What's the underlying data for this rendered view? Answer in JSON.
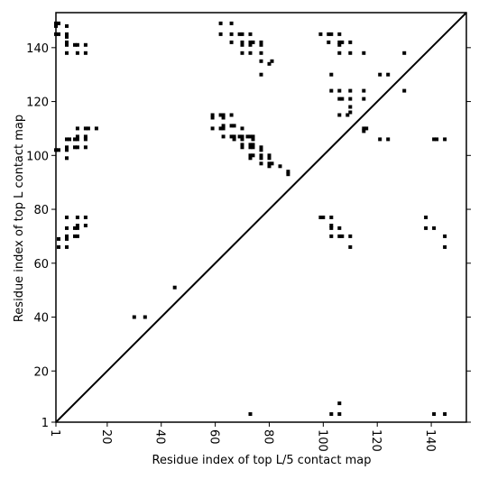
{
  "chart_data": {
    "type": "scatter",
    "title": "",
    "xlabel": "Residue index of top L/5 contact map",
    "ylabel": "Residue index of top L contact map",
    "xlim": [
      1,
      153
    ],
    "ylim": [
      1,
      153
    ],
    "xticks": [
      1,
      20,
      40,
      60,
      80,
      100,
      120,
      140
    ],
    "yticks": [
      1,
      20,
      40,
      60,
      80,
      100,
      120,
      140
    ],
    "grid": false,
    "diagonal_line": true,
    "marker": "small black squares",
    "series": [
      {
        "points": [
          [
            1,
            149
          ],
          [
            1,
            148
          ],
          [
            1,
            145
          ],
          [
            2,
            149
          ],
          [
            2,
            145
          ],
          [
            5,
            148
          ],
          [
            5,
            145
          ],
          [
            5,
            144
          ],
          [
            5,
            142
          ],
          [
            5,
            141
          ],
          [
            5,
            138
          ],
          [
            8,
            141
          ],
          [
            9,
            141
          ],
          [
            9,
            138
          ],
          [
            12,
            141
          ],
          [
            12,
            138
          ],
          [
            1,
            102
          ],
          [
            2,
            102
          ],
          [
            5,
            106
          ],
          [
            5,
            103
          ],
          [
            5,
            102
          ],
          [
            5,
            99
          ],
          [
            6,
            106
          ],
          [
            8,
            106
          ],
          [
            9,
            110
          ],
          [
            9,
            107
          ],
          [
            9,
            106
          ],
          [
            9,
            103
          ],
          [
            8,
            103
          ],
          [
            12,
            110
          ],
          [
            12,
            107
          ],
          [
            12,
            106
          ],
          [
            12,
            103
          ],
          [
            13,
            110
          ],
          [
            16,
            110
          ],
          [
            5,
            77
          ],
          [
            5,
            73
          ],
          [
            5,
            70
          ],
          [
            5,
            69
          ],
          [
            5,
            66
          ],
          [
            2,
            69
          ],
          [
            2,
            66
          ],
          [
            8,
            73
          ],
          [
            8,
            70
          ],
          [
            9,
            77
          ],
          [
            9,
            74
          ],
          [
            9,
            73
          ],
          [
            9,
            70
          ],
          [
            12,
            77
          ],
          [
            12,
            74
          ],
          [
            30,
            40
          ],
          [
            34,
            40
          ],
          [
            45,
            51
          ],
          [
            62,
            149
          ],
          [
            66,
            149
          ],
          [
            62,
            145
          ],
          [
            66,
            145
          ],
          [
            69,
            145
          ],
          [
            70,
            145
          ],
          [
            73,
            145
          ],
          [
            66,
            142
          ],
          [
            70,
            142
          ],
          [
            73,
            142
          ],
          [
            74,
            142
          ],
          [
            77,
            142
          ],
          [
            70,
            141
          ],
          [
            73,
            141
          ],
          [
            77,
            141
          ],
          [
            70,
            138
          ],
          [
            73,
            138
          ],
          [
            77,
            138
          ],
          [
            77,
            135
          ],
          [
            77,
            130
          ],
          [
            80,
            134
          ],
          [
            81,
            135
          ],
          [
            59,
            115
          ],
          [
            59,
            114
          ],
          [
            62,
            115
          ],
          [
            63,
            115
          ],
          [
            63,
            114
          ],
          [
            66,
            115
          ],
          [
            59,
            110
          ],
          [
            62,
            110
          ],
          [
            63,
            111
          ],
          [
            63,
            110
          ],
          [
            66,
            111
          ],
          [
            67,
            111
          ],
          [
            70,
            110
          ],
          [
            63,
            107
          ],
          [
            66,
            107
          ],
          [
            67,
            107
          ],
          [
            67,
            106
          ],
          [
            69,
            107
          ],
          [
            70,
            107
          ],
          [
            70,
            106
          ],
          [
            70,
            104
          ],
          [
            70,
            103
          ],
          [
            72,
            107
          ],
          [
            73,
            107
          ],
          [
            74,
            107
          ],
          [
            74,
            106
          ],
          [
            73,
            104
          ],
          [
            74,
            104
          ],
          [
            73,
            103
          ],
          [
            74,
            103
          ],
          [
            73,
            100
          ],
          [
            74,
            100
          ],
          [
            73,
            99
          ],
          [
            77,
            103
          ],
          [
            77,
            102
          ],
          [
            77,
            100
          ],
          [
            77,
            99
          ],
          [
            77,
            97
          ],
          [
            80,
            100
          ],
          [
            80,
            99
          ],
          [
            80,
            97
          ],
          [
            80,
            96
          ],
          [
            81,
            97
          ],
          [
            84,
            96
          ],
          [
            87,
            94
          ],
          [
            87,
            93
          ],
          [
            99,
            145
          ],
          [
            102,
            145
          ],
          [
            103,
            145
          ],
          [
            106,
            145
          ],
          [
            102,
            142
          ],
          [
            106,
            142
          ],
          [
            107,
            142
          ],
          [
            110,
            142
          ],
          [
            106,
            141
          ],
          [
            106,
            138
          ],
          [
            110,
            138
          ],
          [
            115,
            138
          ],
          [
            103,
            130
          ],
          [
            121,
            130
          ],
          [
            124,
            130
          ],
          [
            130,
            138
          ],
          [
            103,
            124
          ],
          [
            106,
            124
          ],
          [
            110,
            124
          ],
          [
            115,
            124
          ],
          [
            106,
            121
          ],
          [
            107,
            121
          ],
          [
            110,
            121
          ],
          [
            115,
            121
          ],
          [
            110,
            118
          ],
          [
            110,
            116
          ],
          [
            106,
            115
          ],
          [
            109,
            115
          ],
          [
            115,
            110
          ],
          [
            116,
            110
          ],
          [
            115,
            109
          ],
          [
            121,
            106
          ],
          [
            124,
            106
          ],
          [
            130,
            124
          ],
          [
            141,
            106
          ],
          [
            142,
            106
          ],
          [
            145,
            106
          ],
          [
            99,
            77
          ],
          [
            100,
            77
          ],
          [
            103,
            77
          ],
          [
            103,
            74
          ],
          [
            103,
            73
          ],
          [
            106,
            73
          ],
          [
            103,
            70
          ],
          [
            106,
            70
          ],
          [
            107,
            70
          ],
          [
            110,
            70
          ],
          [
            110,
            66
          ],
          [
            138,
            77
          ],
          [
            138,
            73
          ],
          [
            141,
            73
          ],
          [
            145,
            70
          ],
          [
            145,
            66
          ],
          [
            73,
            4
          ],
          [
            103,
            4
          ],
          [
            106,
            4
          ],
          [
            106,
            8
          ],
          [
            141,
            4
          ],
          [
            145,
            4
          ]
        ]
      }
    ]
  }
}
